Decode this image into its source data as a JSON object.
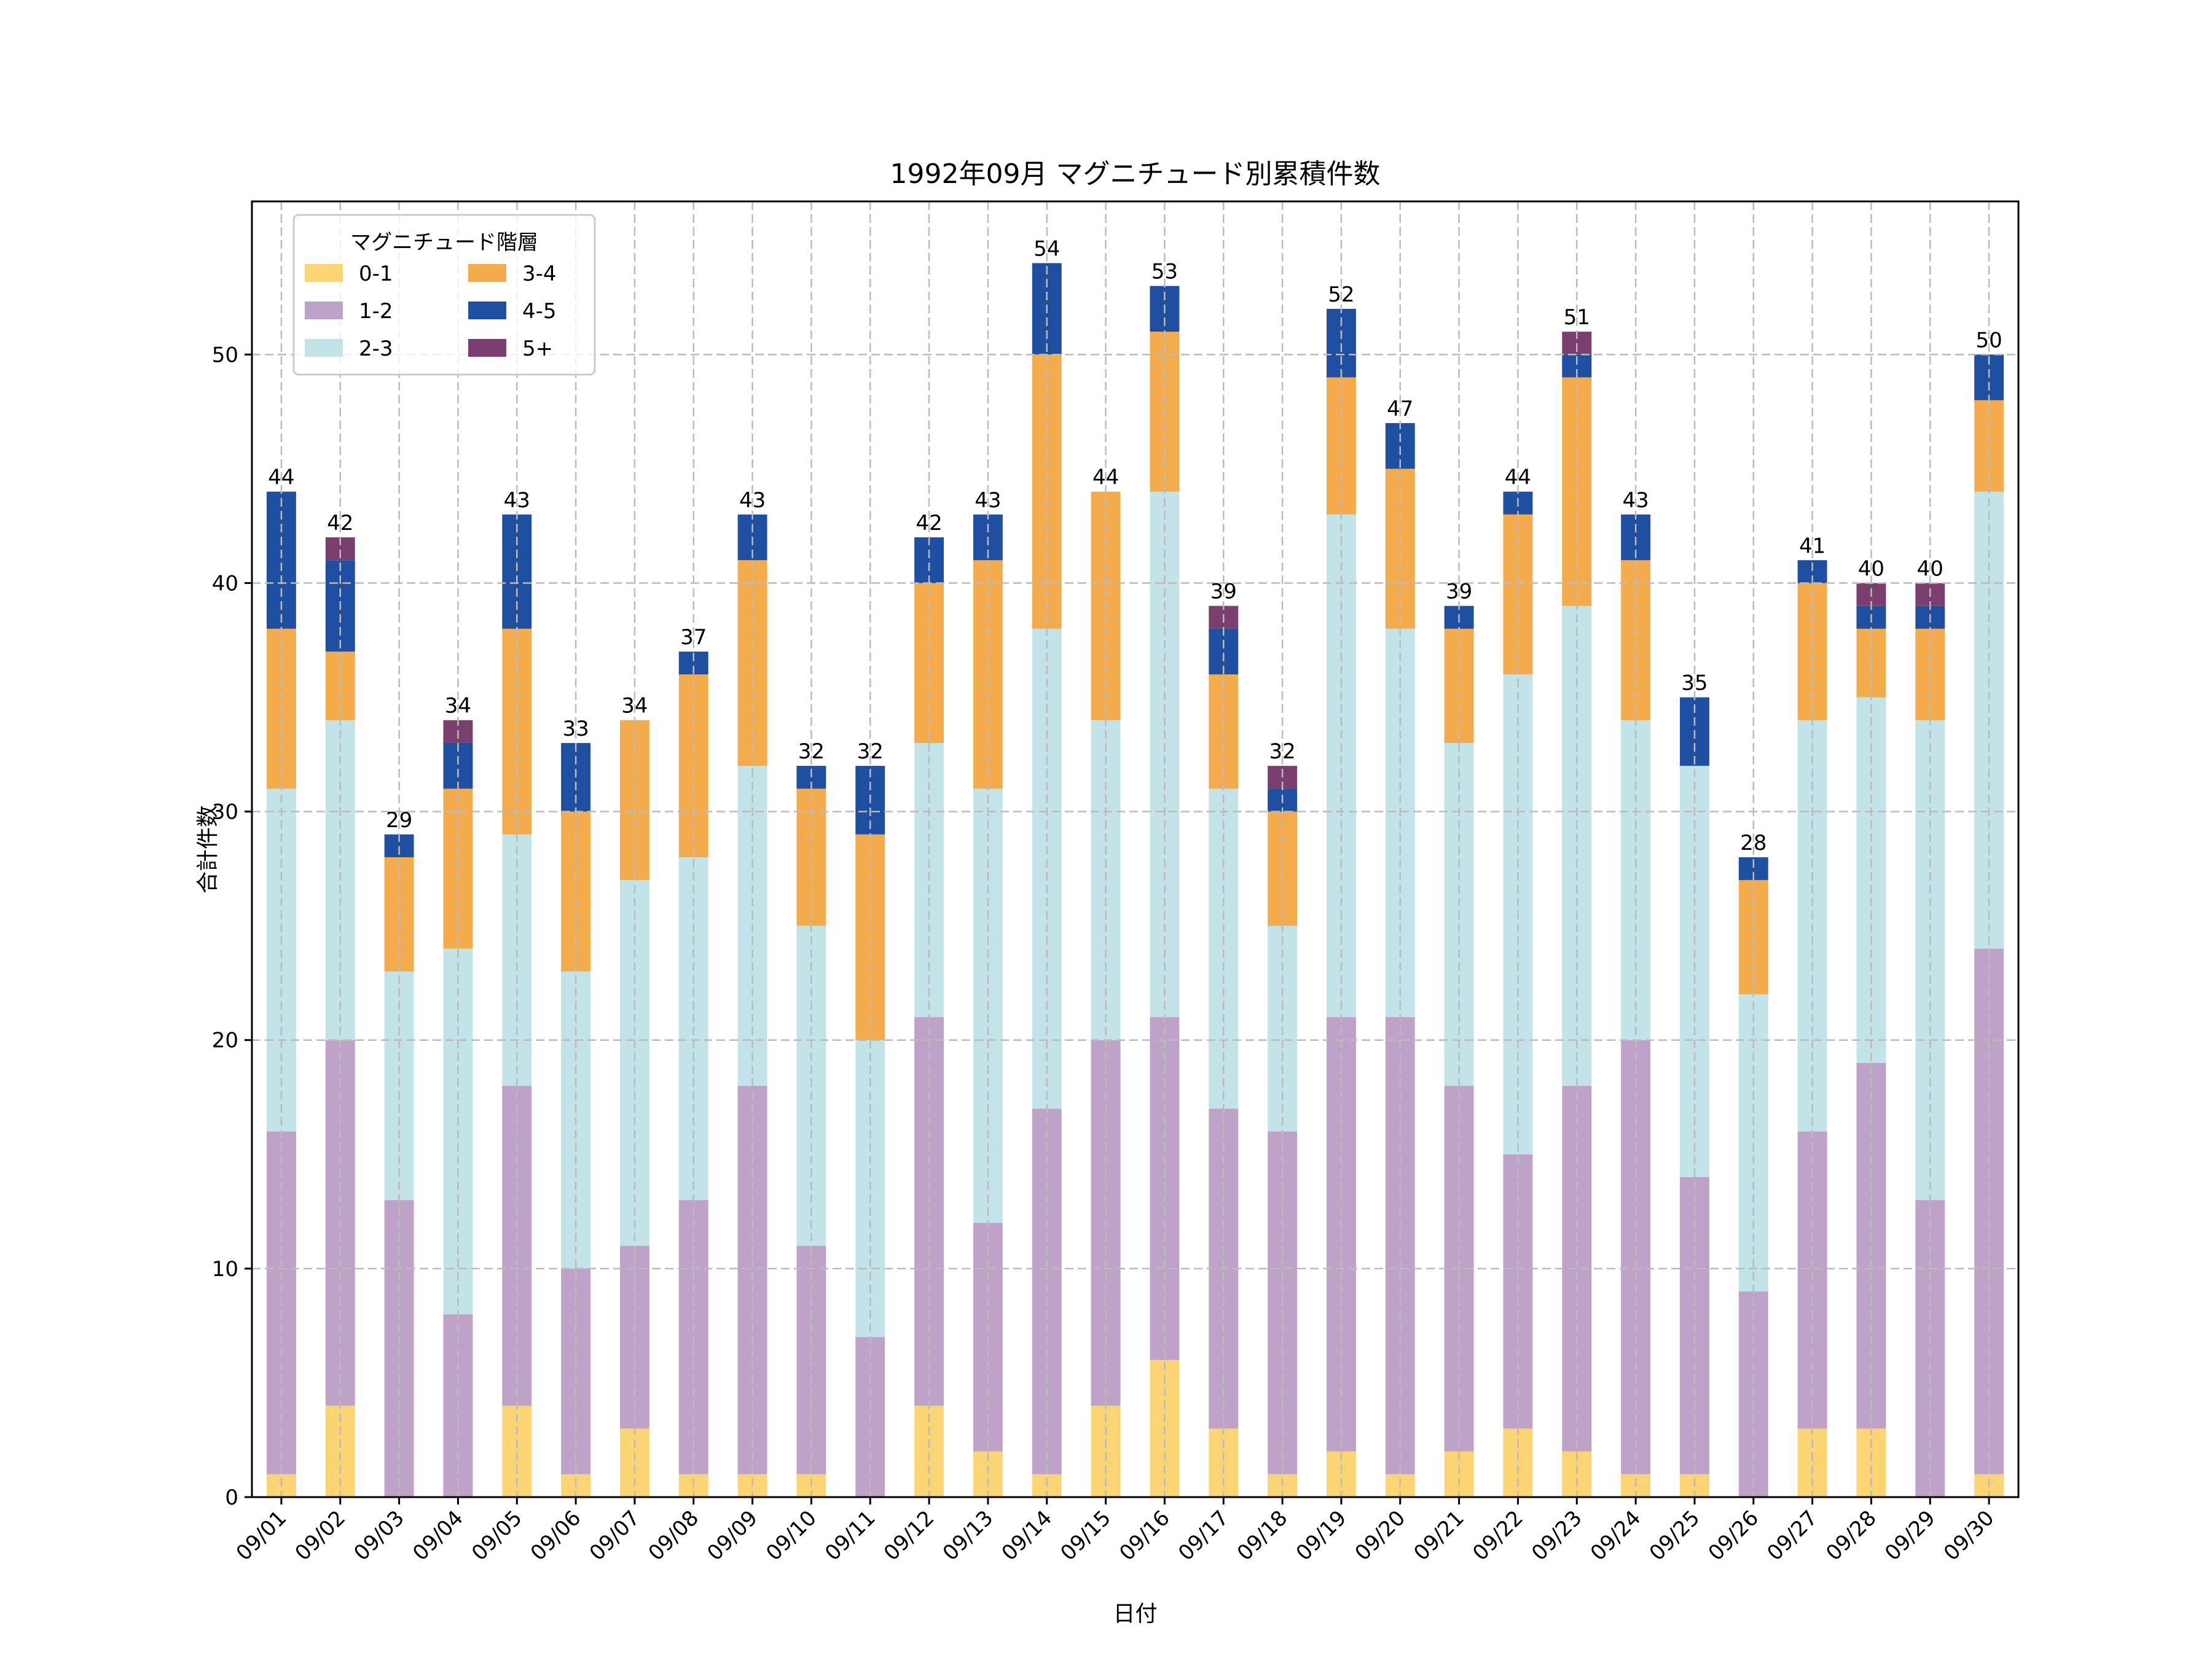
{
  "chart_data": {
    "type": "bar",
    "stacked": true,
    "title": "1992年09月 マグニチュード別累積件数",
    "xlabel": "日付",
    "ylabel": "合計件数",
    "ylim": [
      0,
      56.7
    ],
    "yticks": [
      0,
      10,
      20,
      30,
      40,
      50
    ],
    "grid": true,
    "legend": {
      "title": "マグニチュード階層",
      "placement": "top-left",
      "columns": 2
    },
    "categories": [
      "09/01",
      "09/02",
      "09/03",
      "09/04",
      "09/05",
      "09/06",
      "09/07",
      "09/08",
      "09/09",
      "09/10",
      "09/11",
      "09/12",
      "09/13",
      "09/14",
      "09/15",
      "09/16",
      "09/17",
      "09/18",
      "09/19",
      "09/20",
      "09/21",
      "09/22",
      "09/23",
      "09/24",
      "09/25",
      "09/26",
      "09/27",
      "09/28",
      "09/29",
      "09/30"
    ],
    "series": [
      {
        "name": "0-1",
        "color": "#fbd474",
        "values": [
          1,
          4,
          0,
          0,
          4,
          1,
          3,
          1,
          1,
          1,
          0,
          4,
          2,
          1,
          4,
          6,
          3,
          1,
          2,
          1,
          2,
          3,
          2,
          1,
          1,
          0,
          3,
          3,
          0,
          1
        ]
      },
      {
        "name": "1-2",
        "color": "#bfa2c7",
        "values": [
          15,
          16,
          13,
          8,
          14,
          9,
          8,
          12,
          17,
          10,
          7,
          17,
          10,
          16,
          16,
          15,
          14,
          15,
          19,
          20,
          16,
          12,
          16,
          19,
          13,
          9,
          13,
          16,
          13,
          23
        ]
      },
      {
        "name": "2-3",
        "color": "#c2e3e7",
        "values": [
          15,
          14,
          10,
          16,
          11,
          13,
          16,
          15,
          14,
          14,
          13,
          12,
          19,
          21,
          14,
          23,
          14,
          9,
          22,
          17,
          15,
          21,
          21,
          14,
          18,
          13,
          18,
          16,
          21,
          20
        ]
      },
      {
        "name": "3-4",
        "color": "#f4ab4b",
        "values": [
          7,
          3,
          5,
          7,
          9,
          7,
          7,
          8,
          9,
          6,
          9,
          7,
          10,
          12,
          10,
          7,
          5,
          5,
          6,
          7,
          5,
          7,
          10,
          7,
          0,
          5,
          6,
          3,
          4,
          4
        ]
      },
      {
        "name": "4-5",
        "color": "#1f4fa1",
        "values": [
          6,
          4,
          1,
          2,
          5,
          3,
          0,
          1,
          2,
          1,
          3,
          2,
          2,
          4,
          0,
          2,
          2,
          1,
          3,
          2,
          1,
          1,
          1,
          2,
          3,
          1,
          1,
          1,
          1,
          2
        ]
      },
      {
        "name": "5+",
        "color": "#7a3f6e",
        "values": [
          0,
          1,
          0,
          1,
          0,
          0,
          0,
          0,
          0,
          0,
          0,
          0,
          0,
          0,
          0,
          0,
          1,
          1,
          0,
          0,
          0,
          0,
          1,
          0,
          0,
          0,
          0,
          1,
          1,
          0
        ]
      }
    ],
    "totals": [
      44,
      42,
      29,
      34,
      43,
      33,
      34,
      37,
      43,
      32,
      32,
      42,
      43,
      54,
      44,
      53,
      39,
      32,
      52,
      47,
      39,
      44,
      51,
      43,
      35,
      28,
      41,
      40,
      40,
      50
    ]
  }
}
